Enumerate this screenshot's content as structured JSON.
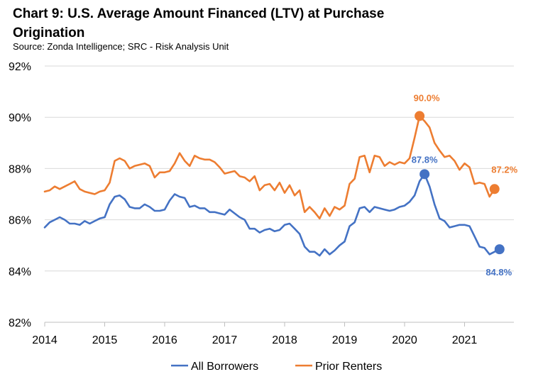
{
  "title": "Chart 9: U.S. Average Amount Financed (LTV) at Purchase Origination",
  "subtitle": "Source: Zonda Intelligence; SRC - Risk Analysis Unit",
  "colors": {
    "all_borrowers": "#4472C4",
    "prior_renters": "#ED7D31",
    "grid": "#D9D9D9",
    "axis": "#BFBFBF"
  },
  "chart_data": {
    "type": "line",
    "title": "Chart 9: U.S. Average Amount Financed (LTV) at Purchase Origination",
    "xlabel": "",
    "ylabel": "",
    "xlim": [
      2014,
      2022
    ],
    "ylim": [
      82,
      92
    ],
    "y_ticks": [
      82,
      84,
      86,
      88,
      90,
      92
    ],
    "y_tick_labels": [
      "82%",
      "84%",
      "86%",
      "88%",
      "90%",
      "92%"
    ],
    "x_ticks": [
      2014,
      2015,
      2016,
      2017,
      2018,
      2019,
      2020,
      2021
    ],
    "x_tick_labels": [
      "2014",
      "2015",
      "2016",
      "2017",
      "2018",
      "2019",
      "2020",
      "2021"
    ],
    "grid": "horizontal",
    "legend_position": "bottom",
    "series": [
      {
        "name": "All Borrowers",
        "color": "#4472C4",
        "start": 2014.0,
        "step": 0.08333,
        "values": [
          85.7,
          85.9,
          86.0,
          86.1,
          86.0,
          85.85,
          85.85,
          85.8,
          85.95,
          85.85,
          85.95,
          86.05,
          86.1,
          86.6,
          86.9,
          86.95,
          86.8,
          86.5,
          86.45,
          86.45,
          86.6,
          86.5,
          86.35,
          86.35,
          86.4,
          86.75,
          87.0,
          86.9,
          86.85,
          86.5,
          86.55,
          86.45,
          86.45,
          86.3,
          86.3,
          86.25,
          86.2,
          86.4,
          86.25,
          86.1,
          86.0,
          85.65,
          85.65,
          85.5,
          85.6,
          85.65,
          85.55,
          85.6,
          85.8,
          85.85,
          85.65,
          85.45,
          84.95,
          84.75,
          84.75,
          84.6,
          84.85,
          84.65,
          84.8,
          85.0,
          85.15,
          85.75,
          85.9,
          86.45,
          86.5,
          86.3,
          86.5,
          86.45,
          86.4,
          86.35,
          86.4,
          86.5,
          86.55,
          86.7,
          86.95,
          87.5,
          87.78,
          87.3,
          86.6,
          86.05,
          85.95,
          85.7,
          85.75,
          85.8,
          85.8,
          85.75,
          85.35,
          84.95,
          84.9,
          84.65,
          84.75,
          84.85
        ],
        "end_label": "84.8%",
        "peak_label": "87.8%"
      },
      {
        "name": "Prior Renters",
        "color": "#ED7D31",
        "start": 2014.0,
        "step": 0.08333,
        "values": [
          87.1,
          87.15,
          87.3,
          87.2,
          87.3,
          87.4,
          87.5,
          87.2,
          87.1,
          87.05,
          87.0,
          87.1,
          87.15,
          87.45,
          88.3,
          88.4,
          88.3,
          88.0,
          88.1,
          88.15,
          88.2,
          88.1,
          87.65,
          87.85,
          87.85,
          87.9,
          88.2,
          88.6,
          88.3,
          88.1,
          88.5,
          88.4,
          88.35,
          88.35,
          88.25,
          88.05,
          87.8,
          87.85,
          87.9,
          87.7,
          87.65,
          87.5,
          87.7,
          87.15,
          87.35,
          87.4,
          87.15,
          87.45,
          87.05,
          87.35,
          86.95,
          87.15,
          86.3,
          86.5,
          86.3,
          86.05,
          86.45,
          86.15,
          86.5,
          86.4,
          86.55,
          87.4,
          87.6,
          88.45,
          88.5,
          87.85,
          88.5,
          88.45,
          88.1,
          88.25,
          88.15,
          88.25,
          88.2,
          88.4,
          89.2,
          90.05,
          89.85,
          89.6,
          89.0,
          88.7,
          88.45,
          88.5,
          88.3,
          87.95,
          88.2,
          88.05,
          87.4,
          87.45,
          87.4,
          86.9,
          87.2
        ],
        "end_label": "87.2%",
        "peak_label": "90.0%"
      }
    ]
  },
  "legend": {
    "items": [
      "All Borrowers",
      "Prior Renters"
    ]
  }
}
